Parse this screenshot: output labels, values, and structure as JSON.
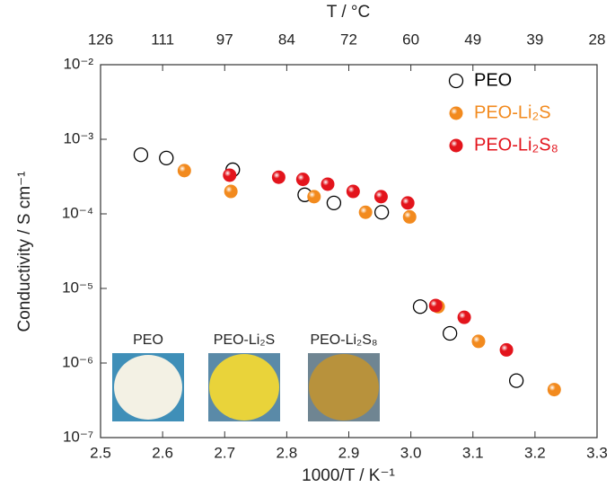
{
  "chart_data": {
    "type": "scatter",
    "xlabel": "1000/T / K⁻¹",
    "ylabel": "Conductivity / S cm⁻¹",
    "x2label": "T / °C",
    "log_y": true,
    "legend": "upper right",
    "xlim": [
      2.5,
      3.3
    ],
    "xticks": [
      2.5,
      2.6,
      2.7,
      2.8,
      2.9,
      {
        "value": 3,
        "label": "3.0"
      },
      3.1,
      3.2,
      3.3
    ],
    "x2ticks": [
      {
        "value": 2.5,
        "label": "126"
      },
      {
        "value": 2.6,
        "label": "111"
      },
      {
        "value": 2.7,
        "label": "97"
      },
      {
        "value": 2.8,
        "label": "84"
      },
      {
        "value": 2.9,
        "label": "72"
      },
      {
        "value": 3.0,
        "label": "60"
      },
      {
        "value": 3.1,
        "label": "49"
      },
      {
        "value": 3.2,
        "label": "39"
      },
      {
        "value": 3.3,
        "label": "28"
      }
    ],
    "ylim": [
      1e-07,
      0.01
    ],
    "yticks": [
      {
        "value": 1e-07,
        "label": "10⁻⁷"
      },
      {
        "value": 1e-06,
        "label": "10⁻⁶"
      },
      {
        "value": 1e-05,
        "label": "10⁻⁵"
      },
      {
        "value": 0.0001,
        "label": "10⁻⁴"
      },
      {
        "value": 0.001,
        "label": "10⁻³"
      },
      {
        "value": 0.01,
        "label": "10⁻²"
      }
    ],
    "series": [
      {
        "name": "PEO",
        "color": "#000000",
        "marker": "open",
        "x": [
          2.565,
          2.606,
          2.713,
          2.829,
          2.876,
          2.953,
          3.015,
          3.063,
          3.17
        ],
        "values": [
          0.00062,
          0.00056,
          0.00039,
          0.00018,
          0.00014,
          0.000105,
          5.7e-06,
          2.5e-06,
          5.8e-07
        ]
      },
      {
        "name": "PEO-Li₂S",
        "color": "#f28a1e",
        "marker": "filled",
        "x": [
          2.635,
          2.71,
          2.844,
          2.927,
          2.998,
          3.044,
          3.109,
          3.231
        ],
        "values": [
          0.00038,
          0.0002,
          0.00017,
          0.000105,
          9.1e-05,
          5.7e-06,
          1.95e-06,
          4.4e-07
        ]
      },
      {
        "name": "PEO-Li₂S₈",
        "color": "#e3141c",
        "marker": "filled",
        "x": [
          2.708,
          2.787,
          2.826,
          2.866,
          2.907,
          2.952,
          2.995,
          3.04,
          3.086,
          3.154
        ],
        "values": [
          0.00033,
          0.00031,
          0.00029,
          0.00025,
          0.0002,
          0.00017,
          0.00014,
          5.9e-06,
          4.1e-06,
          1.5e-06
        ]
      }
    ],
    "insets": [
      {
        "label": "PEO"
      },
      {
        "label": "PEO-Li₂S"
      },
      {
        "label": "PEO-Li₂S₈"
      }
    ]
  }
}
